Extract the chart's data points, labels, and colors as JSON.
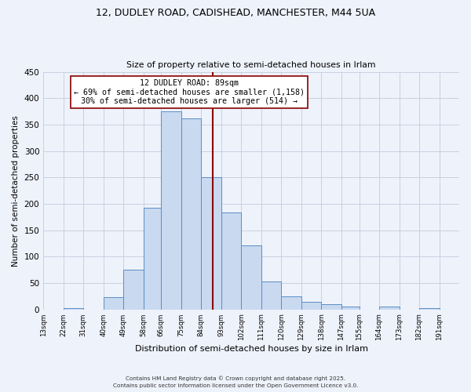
{
  "title_line1": "12, DUDLEY ROAD, CADISHEAD, MANCHESTER, M44 5UA",
  "title_line2": "Size of property relative to semi-detached houses in Irlam",
  "xlabel": "Distribution of semi-detached houses by size in Irlam",
  "ylabel": "Number of semi-detached properties",
  "bin_labels": [
    "13sqm",
    "22sqm",
    "31sqm",
    "40sqm",
    "49sqm",
    "58sqm",
    "66sqm",
    "75sqm",
    "84sqm",
    "93sqm",
    "102sqm",
    "111sqm",
    "120sqm",
    "129sqm",
    "138sqm",
    "147sqm",
    "155sqm",
    "164sqm",
    "173sqm",
    "182sqm",
    "191sqm"
  ],
  "bin_edges": [
    13,
    22,
    31,
    40,
    49,
    58,
    66,
    75,
    84,
    93,
    102,
    111,
    120,
    129,
    138,
    147,
    155,
    164,
    173,
    182,
    191
  ],
  "bar_heights": [
    0,
    2,
    0,
    24,
    75,
    193,
    375,
    362,
    251,
    183,
    122,
    53,
    25,
    14,
    10,
    5,
    0,
    6,
    0,
    2
  ],
  "bar_color": "#c8d9f0",
  "bar_edge_color": "#5b8ec4",
  "property_line_x": 89,
  "property_line_color": "#8b0000",
  "annotation_title": "12 DUDLEY ROAD: 89sqm",
  "annotation_line1": "← 69% of semi-detached houses are smaller (1,158)",
  "annotation_line2": "30% of semi-detached houses are larger (514) →",
  "annotation_box_color": "#ffffff",
  "annotation_box_edge": "#8b0000",
  "ylim": [
    0,
    450
  ],
  "yticks": [
    0,
    50,
    100,
    150,
    200,
    250,
    300,
    350,
    400,
    450
  ],
  "footer_line1": "Contains HM Land Registry data © Crown copyright and database right 2025.",
  "footer_line2": "Contains public sector information licensed under the Open Government Licence v3.0.",
  "background_color": "#eef2fb",
  "grid_color": "#c8d0e0"
}
